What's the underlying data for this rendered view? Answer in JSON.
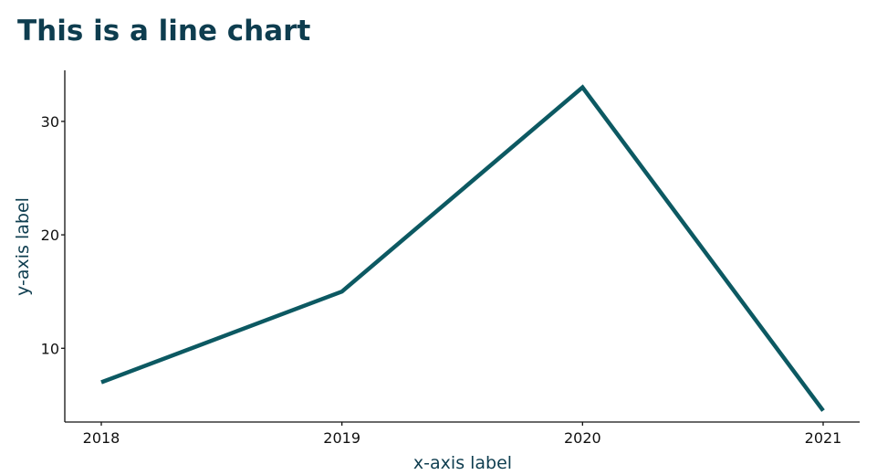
{
  "chart_data": {
    "type": "line",
    "title": "This is a line chart",
    "xlabel": "x-axis label",
    "ylabel": "y-axis label",
    "categories": [
      "2018",
      "2019",
      "2020",
      "2021"
    ],
    "series": [
      {
        "values": [
          7,
          15,
          33,
          4.5
        ]
      }
    ],
    "yticks": [
      10,
      20,
      30
    ],
    "ylim": [
      3.5,
      34.5
    ],
    "grid": false,
    "legend": "none",
    "colors": {
      "line": "#0c5962",
      "title": "#0e3d4f",
      "axis_label": "#0e3d4f",
      "axis": "#111111"
    }
  }
}
